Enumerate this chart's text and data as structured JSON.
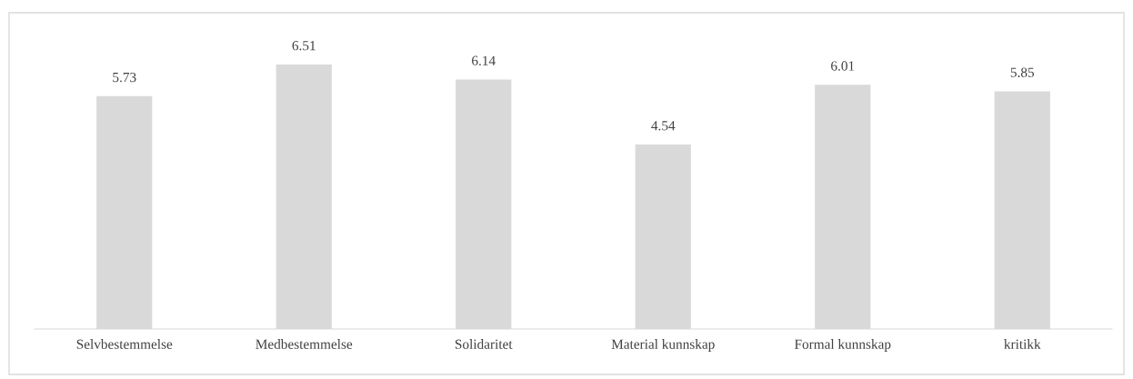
{
  "chart_data": {
    "type": "bar",
    "categories": [
      "Selvbestemmelse",
      "Medbestemmelse",
      "Solidaritet",
      "Material kunnskap",
      "Formal kunnskap",
      "kritikk"
    ],
    "values": [
      5.73,
      6.51,
      6.14,
      4.54,
      6.01,
      5.85
    ],
    "color": "#d9d9d9",
    "data_labels": true,
    "grid": false,
    "legend": false,
    "tick_labels": "x"
  }
}
